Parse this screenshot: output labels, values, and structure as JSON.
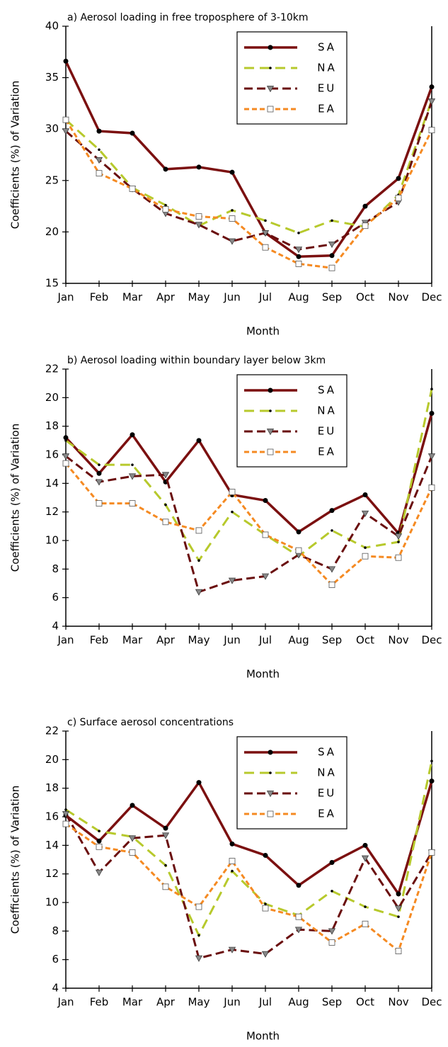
{
  "chart_data": [
    {
      "type": "line",
      "title": "a) Aerosol loading in free troposphere of 3-10km",
      "xlabel": "Month",
      "ylabel": "Coefficients (%) of Variation",
      "categories": [
        "Jan",
        "Feb",
        "Mar",
        "Apr",
        "May",
        "Jun",
        "Jul",
        "Aug",
        "Sep",
        "Oct",
        "Nov",
        "Dec"
      ],
      "ylim": [
        15,
        40
      ],
      "yticks": [
        15,
        20,
        25,
        30,
        35,
        40
      ],
      "series": [
        {
          "name": "SA",
          "color": "#7b1010",
          "values": [
            36.6,
            29.8,
            29.6,
            26.1,
            26.3,
            25.8,
            19.9,
            17.6,
            17.7,
            22.5,
            25.2,
            34.1
          ]
        },
        {
          "name": "NA",
          "color": "#b7c92c",
          "values": [
            30.9,
            28.0,
            24.3,
            22.6,
            20.6,
            22.1,
            21.1,
            19.9,
            21.1,
            20.5,
            23.6,
            32.8
          ]
        },
        {
          "name": "EU",
          "color": "#6a0e0e",
          "values": [
            29.8,
            27.0,
            24.2,
            21.8,
            20.7,
            19.1,
            19.9,
            18.3,
            18.8,
            20.9,
            22.9,
            32.7
          ]
        },
        {
          "name": "EA",
          "color": "#f58a22",
          "values": [
            30.9,
            25.7,
            24.2,
            22.2,
            21.5,
            21.3,
            18.5,
            16.9,
            16.5,
            20.6,
            23.3,
            29.9
          ]
        }
      ]
    },
    {
      "type": "line",
      "title": "b) Aerosol loading within boundary layer below 3km",
      "xlabel": "Month",
      "ylabel": "Coefficients (%) of Variation",
      "categories": [
        "Jan",
        "Feb",
        "Mar",
        "Apr",
        "May",
        "Jun",
        "Jul",
        "Aug",
        "Sep",
        "Oct",
        "Nov",
        "Dec"
      ],
      "ylim": [
        4,
        22
      ],
      "yticks": [
        4,
        6,
        8,
        10,
        12,
        14,
        16,
        18,
        20,
        22
      ],
      "series": [
        {
          "name": "SA",
          "color": "#7b1010",
          "values": [
            17.2,
            14.7,
            17.4,
            14.1,
            17.0,
            13.2,
            12.8,
            10.6,
            12.1,
            13.2,
            10.5,
            18.9
          ]
        },
        {
          "name": "NA",
          "color": "#b7c92c",
          "values": [
            17.0,
            15.3,
            15.3,
            12.5,
            8.6,
            12.0,
            10.4,
            8.9,
            10.7,
            9.5,
            9.9,
            20.6
          ]
        },
        {
          "name": "EU",
          "color": "#6a0e0e",
          "values": [
            15.9,
            14.1,
            14.5,
            14.6,
            6.4,
            7.2,
            7.5,
            9.0,
            8.0,
            11.9,
            10.3,
            15.9
          ]
        },
        {
          "name": "EA",
          "color": "#f58a22",
          "values": [
            15.4,
            12.6,
            12.6,
            11.3,
            10.7,
            13.4,
            10.4,
            9.3,
            6.9,
            8.9,
            8.8,
            13.7
          ]
        }
      ]
    },
    {
      "type": "line",
      "title": "c) Surface aerosol concentrations",
      "xlabel": "Month",
      "ylabel": "Coefficients (%) of Variation",
      "categories": [
        "Jan",
        "Feb",
        "Mar",
        "Apr",
        "May",
        "Jun",
        "Jul",
        "Aug",
        "Sep",
        "Oct",
        "Nov",
        "Dec"
      ],
      "ylim": [
        4,
        22
      ],
      "yticks": [
        4,
        6,
        8,
        10,
        12,
        14,
        16,
        18,
        20,
        22
      ],
      "series": [
        {
          "name": "SA",
          "color": "#7b1010",
          "values": [
            16.1,
            14.3,
            16.8,
            15.2,
            18.4,
            14.1,
            13.3,
            11.2,
            12.8,
            14.0,
            10.6,
            18.5
          ]
        },
        {
          "name": "NA",
          "color": "#b7c92c",
          "values": [
            16.5,
            15.0,
            14.6,
            12.6,
            7.7,
            12.2,
            9.9,
            9.1,
            10.8,
            9.7,
            9.0,
            19.9
          ]
        },
        {
          "name": "EU",
          "color": "#6a0e0e",
          "values": [
            16.2,
            12.1,
            14.5,
            14.7,
            6.1,
            6.7,
            6.4,
            8.1,
            8.0,
            13.1,
            9.6,
            13.5
          ]
        },
        {
          "name": "EA",
          "color": "#f58a22",
          "values": [
            15.5,
            13.9,
            13.5,
            11.1,
            9.7,
            12.9,
            9.6,
            9.0,
            7.2,
            8.5,
            6.6,
            13.5
          ]
        }
      ]
    }
  ]
}
